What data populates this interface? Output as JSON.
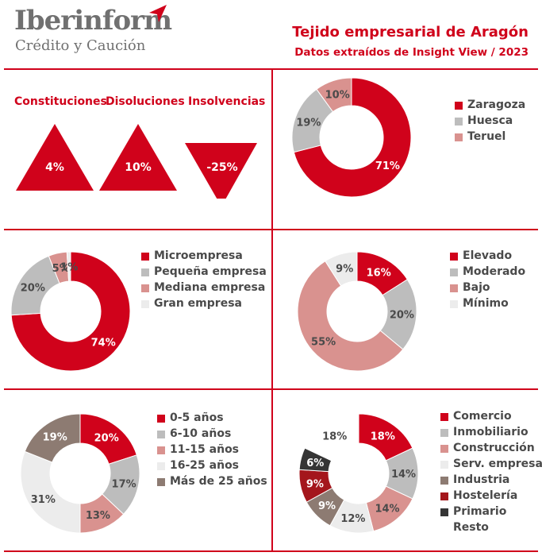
{
  "header": {
    "logo_name": "Iberinform",
    "logo_sub": "Crédito y Caución",
    "title": "Tejido empresarial de Aragón",
    "subtitle": "Datos extraídos de Insight View / 2023"
  },
  "colors": {
    "brand_red": "#d0021b",
    "grey": "#bdbdbd",
    "pink": "#d9928f",
    "light": "#ececec",
    "taupe": "#8d7b72",
    "dark_red": "#a4161c",
    "dark": "#353535"
  },
  "indicators": [
    {
      "label": "Constituciones",
      "value": "4%",
      "direction": "up"
    },
    {
      "label": "Disoluciones",
      "value": "10%",
      "direction": "up"
    },
    {
      "label": "Insolvencias",
      "value": "-25%",
      "direction": "down"
    }
  ],
  "chart_data": [
    {
      "type": "pie",
      "id": "provincias",
      "donut": true,
      "categories": [
        "Zaragoza",
        "Huesca",
        "Teruel"
      ],
      "values": [
        71,
        19,
        10
      ],
      "labels": [
        "71%",
        "19%",
        "10%"
      ],
      "colors": [
        "#d0021b",
        "#bdbdbd",
        "#d9928f"
      ],
      "legend_position": "right"
    },
    {
      "type": "pie",
      "id": "tamano",
      "donut": true,
      "categories": [
        "Microempresa",
        "Pequeña empresa",
        "Mediana empresa",
        "Gran empresa"
      ],
      "values": [
        74,
        20,
        5,
        1
      ],
      "labels": [
        "74%",
        "20%",
        "5%",
        "1%"
      ],
      "colors": [
        "#d0021b",
        "#bdbdbd",
        "#d9928f",
        "#ececec"
      ],
      "legend_position": "right"
    },
    {
      "type": "pie",
      "id": "riesgo",
      "donut": true,
      "categories": [
        "Elevado",
        "Moderado",
        "Bajo",
        "Mínimo"
      ],
      "values": [
        16,
        20,
        55,
        9
      ],
      "labels": [
        "16%",
        "20%",
        "55%",
        "9%"
      ],
      "colors": [
        "#d0021b",
        "#bdbdbd",
        "#d9928f",
        "#ececec"
      ],
      "legend_position": "right"
    },
    {
      "type": "pie",
      "id": "antiguedad",
      "donut": true,
      "categories": [
        "0-5 años",
        "6-10 años",
        "11-15 años",
        "16-25 años",
        "Más de 25 años"
      ],
      "values": [
        20,
        17,
        13,
        31,
        19
      ],
      "labels": [
        "20%",
        "17%",
        "13%",
        "31%",
        "19%"
      ],
      "colors": [
        "#d0021b",
        "#bdbdbd",
        "#d9928f",
        "#ececec",
        "#8d7b72"
      ],
      "legend_position": "right"
    },
    {
      "type": "pie",
      "id": "sectores",
      "donut": true,
      "categories": [
        "Comercio",
        "Inmobiliario",
        "Construcción",
        "Serv. empresa",
        "Industria",
        "Hostelería",
        "Primario",
        "Resto"
      ],
      "values": [
        18,
        14,
        14,
        12,
        9,
        9,
        6,
        18
      ],
      "labels": [
        "18%",
        "14%",
        "14%",
        "12%",
        "9%",
        "9%",
        "6%",
        "18%"
      ],
      "colors": [
        "#d0021b",
        "#bdbdbd",
        "#d9928f",
        "#ececec",
        "#8d7b72",
        "#a4161c",
        "#353535",
        "#ffffff"
      ],
      "legend_position": "right"
    }
  ]
}
